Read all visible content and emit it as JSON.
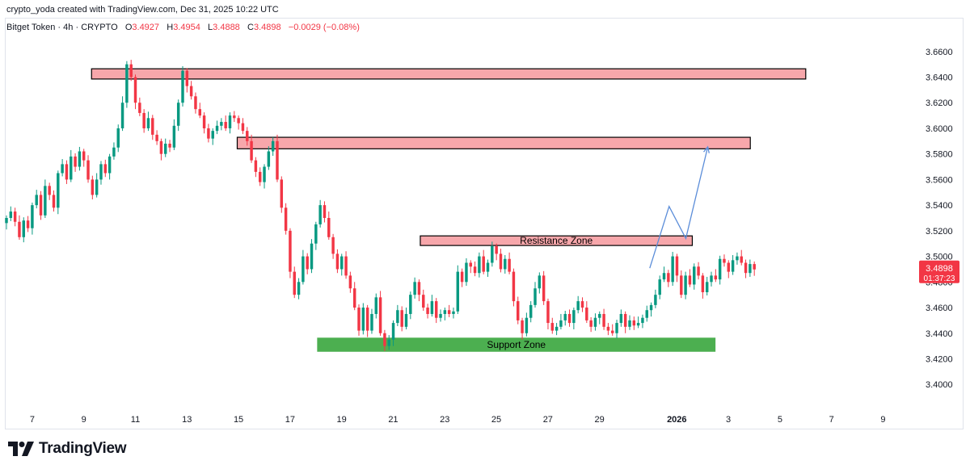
{
  "header": {
    "author": "crypto_yoda",
    "created_text": "created with TradingView.com, Dec 31, 2025 10:22 UTC"
  },
  "symbol": {
    "name": "Bitget Token",
    "interval": "4h",
    "exchange": "CRYPTO",
    "open_label": "O",
    "open": "3.4927",
    "high_label": "H",
    "high": "3.4954",
    "low_label": "L",
    "low": "3.4888",
    "close_label": "C",
    "close": "3.4898",
    "change": "−0.0029 (−0.08%)"
  },
  "footer": {
    "brand": "TradingView"
  },
  "colors": {
    "up": "#089981",
    "down": "#f23645",
    "zone_red_fill": "#f7a7ab",
    "zone_green_fill": "#4caf50",
    "projection": "#5b8dd9",
    "price_tag": "#f23645"
  },
  "chart_data": {
    "type": "candlestick",
    "symbol": "Bitget Token",
    "interval": "4h",
    "ylim": [
      3.385,
      3.675
    ],
    "y_ticks": [
      "3.6600",
      "3.6400",
      "3.6200",
      "3.6000",
      "3.5800",
      "3.5600",
      "3.5400",
      "3.5200",
      "3.5000",
      "3.4800",
      "3.4600",
      "3.4400",
      "3.4200",
      "3.4000"
    ],
    "x_range_days": [
      6.0,
      40.8
    ],
    "x_ticks": [
      {
        "label": "7",
        "day": 7,
        "bold": false
      },
      {
        "label": "9",
        "day": 9,
        "bold": false
      },
      {
        "label": "11",
        "day": 11,
        "bold": false
      },
      {
        "label": "13",
        "day": 13,
        "bold": false
      },
      {
        "label": "15",
        "day": 15,
        "bold": false
      },
      {
        "label": "17",
        "day": 17,
        "bold": false
      },
      {
        "label": "19",
        "day": 19,
        "bold": false
      },
      {
        "label": "21",
        "day": 21,
        "bold": false
      },
      {
        "label": "23",
        "day": 23,
        "bold": false
      },
      {
        "label": "25",
        "day": 25,
        "bold": false
      },
      {
        "label": "27",
        "day": 27,
        "bold": false
      },
      {
        "label": "29",
        "day": 29,
        "bold": false
      },
      {
        "label": "2026",
        "day": 32,
        "bold": true
      },
      {
        "label": "3",
        "day": 34,
        "bold": false
      },
      {
        "label": "5",
        "day": 36,
        "bold": false
      },
      {
        "label": "7",
        "day": 38,
        "bold": false
      },
      {
        "label": "9",
        "day": 40,
        "bold": false
      }
    ],
    "candles_start_day": 6.0,
    "candle_step_days": 0.1667,
    "closes": [
      3.53,
      3.535,
      3.527,
      3.515,
      3.528,
      3.522,
      3.54,
      3.548,
      3.532,
      3.555,
      3.548,
      3.538,
      3.565,
      3.572,
      3.56,
      3.578,
      3.57,
      3.582,
      3.575,
      3.56,
      3.548,
      3.56,
      3.572,
      3.565,
      3.578,
      3.585,
      3.6,
      3.62,
      3.65,
      3.64,
      3.62,
      3.612,
      3.6,
      3.608,
      3.595,
      3.59,
      3.58,
      3.588,
      3.585,
      3.602,
      3.62,
      3.645,
      3.633,
      3.625,
      3.615,
      3.61,
      3.6,
      3.592,
      3.598,
      3.602,
      3.605,
      3.6,
      3.61,
      3.608,
      3.604,
      3.598,
      3.59,
      3.575,
      3.566,
      3.558,
      3.57,
      3.582,
      3.59,
      3.56,
      3.538,
      3.52,
      3.488,
      3.47,
      3.48,
      3.5,
      3.49,
      3.51,
      3.525,
      3.54,
      3.53,
      3.515,
      3.502,
      3.49,
      3.5,
      3.485,
      3.475,
      3.46,
      3.442,
      3.46,
      3.442,
      3.455,
      3.468,
      3.44,
      3.43,
      3.435,
      3.448,
      3.458,
      3.445,
      3.455,
      3.47,
      3.48,
      3.47,
      3.46,
      3.455,
      3.465,
      3.452,
      3.455,
      3.458,
      3.455,
      3.457,
      3.488,
      3.48,
      3.495,
      3.492,
      3.487,
      3.5,
      3.488,
      3.495,
      3.508,
      3.502,
      3.49,
      3.498,
      3.488,
      3.465,
      3.45,
      3.44,
      3.452,
      3.462,
      3.475,
      3.485,
      3.465,
      3.448,
      3.442,
      3.445,
      3.45,
      3.455,
      3.448,
      3.458,
      3.465,
      3.46,
      3.45,
      3.445,
      3.452,
      3.455,
      3.445,
      3.442,
      3.44,
      3.448,
      3.455,
      3.445,
      3.45,
      3.446,
      3.448,
      3.452,
      3.458,
      3.462,
      3.47,
      3.482,
      3.487,
      3.48,
      3.5,
      3.485,
      3.47,
      3.485,
      3.478,
      3.492,
      3.485,
      3.472,
      3.48,
      3.485,
      3.482,
      3.498,
      3.495,
      3.488,
      3.497,
      3.5,
      3.495,
      3.487,
      3.494,
      3.4898
    ],
    "zones": [
      {
        "label": "",
        "color": "red",
        "from_day": 9.3,
        "to_day": 37.0,
        "low": 3.6385,
        "high": 3.6465
      },
      {
        "label": "",
        "color": "red",
        "from_day": 14.95,
        "to_day": 34.85,
        "low": 3.584,
        "high": 3.593
      },
      {
        "label": "Resistance Zone",
        "color": "red",
        "from_day": 22.05,
        "to_day": 32.6,
        "low": 3.5085,
        "high": 3.516
      },
      {
        "label": "Support Zone",
        "color": "green",
        "from_day": 18.05,
        "to_day": 33.5,
        "low": 3.4255,
        "high": 3.4365
      }
    ],
    "projection": [
      {
        "day": 30.95,
        "price": 3.4908
      },
      {
        "day": 31.7,
        "price": 3.539
      },
      {
        "day": 32.35,
        "price": 3.514
      },
      {
        "day": 33.2,
        "price": 3.5855
      }
    ],
    "last_price": "3.4898",
    "countdown": "01:37:23"
  }
}
